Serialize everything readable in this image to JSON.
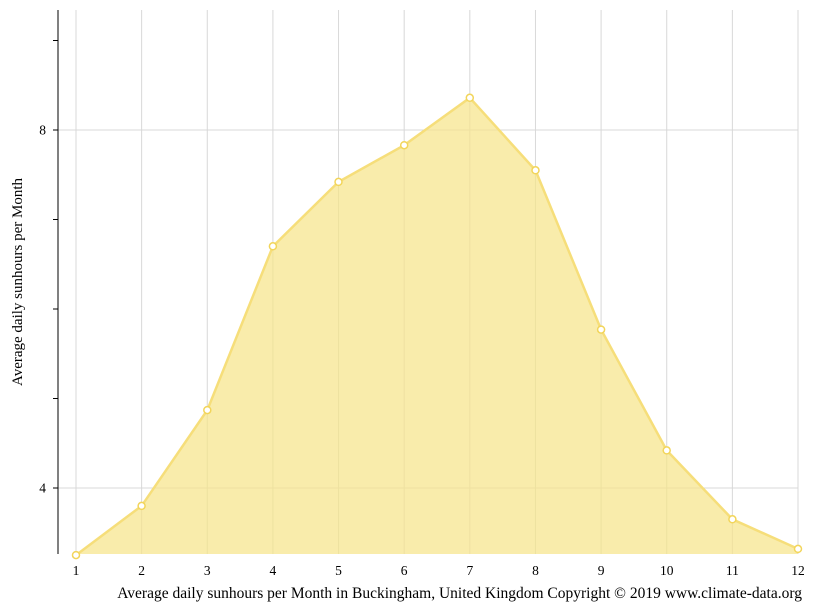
{
  "chart_data": {
    "type": "area",
    "title": "",
    "caption": "Average daily sunhours per Month in Buckingham, United Kingdom Copyright © 2019 www.climate-data.org",
    "xlabel": "",
    "ylabel": "Average daily sunhours per Month",
    "x": [
      1,
      2,
      3,
      4,
      5,
      6,
      7,
      8,
      9,
      10,
      11,
      12
    ],
    "x_tick_labels": [
      "1",
      "2",
      "3",
      "4",
      "5",
      "6",
      "7",
      "8",
      "9",
      "10",
      "11",
      "12"
    ],
    "y_tick_labels": [
      "4",
      "8"
    ],
    "y_ticks_labeled": [
      4,
      8
    ],
    "y_ticks_minor": [
      5,
      6,
      7,
      9
    ],
    "series": [
      {
        "values": [
          3.25,
          3.8,
          4.87,
          6.7,
          7.42,
          7.83,
          8.36,
          7.55,
          5.77,
          4.42,
          3.65,
          3.32
        ]
      }
    ],
    "xlim": [
      1,
      12
    ],
    "ylim": [
      3.25,
      9.3
    ],
    "grid": true,
    "legend": "none",
    "colors": {
      "fill": "#f7e48a",
      "line": "#f6de7a",
      "marker_stroke": "#f2d55a",
      "marker_fill": "#ffffff",
      "grid": "#d8d8d8",
      "axis": "#000000"
    }
  }
}
